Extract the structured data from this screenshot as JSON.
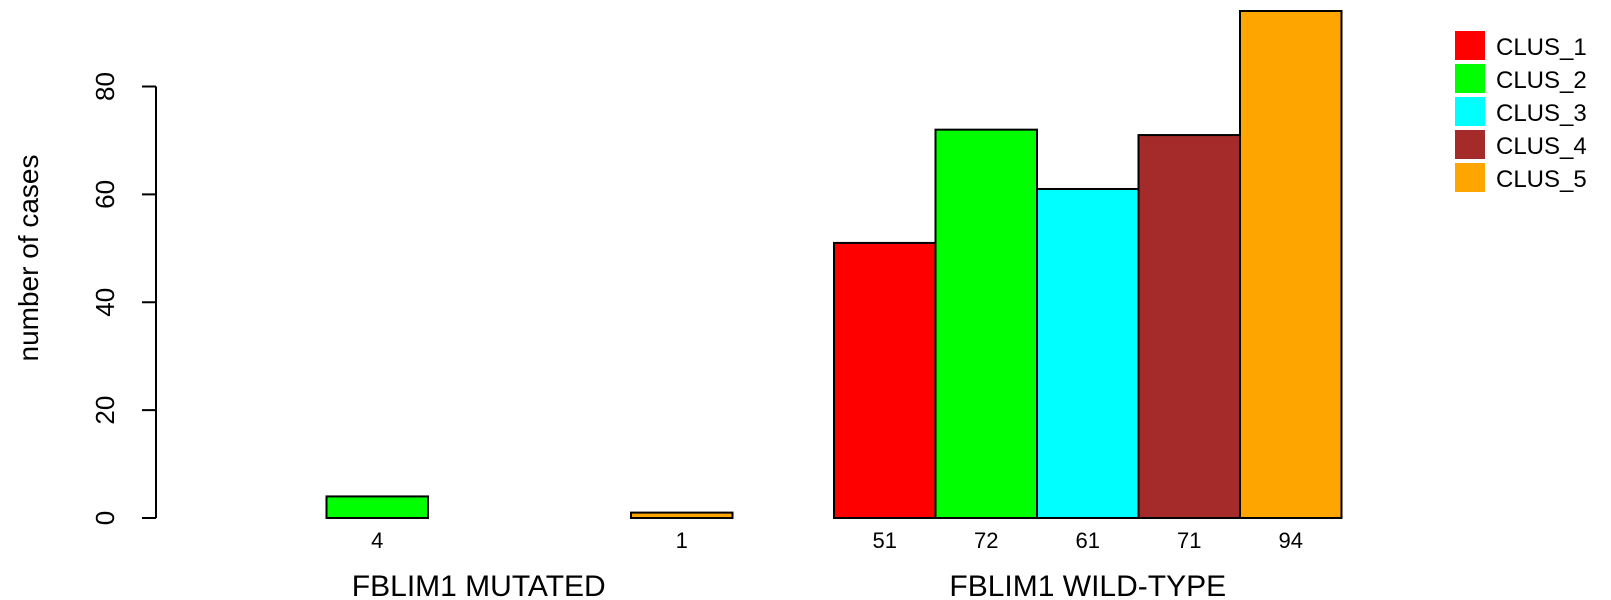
{
  "chart_data": {
    "type": "bar",
    "ylabel": "number of cases",
    "ylim": [
      0,
      94
    ],
    "yticks": [
      0,
      20,
      40,
      60,
      80
    ],
    "groups": [
      "FBLIM1 MUTATED",
      "FBLIM1 WILD-TYPE"
    ],
    "series": [
      {
        "name": "CLUS_1",
        "color": "#ff0000",
        "values": [
          0,
          51
        ]
      },
      {
        "name": "CLUS_2",
        "color": "#00ff00",
        "values": [
          4,
          72
        ]
      },
      {
        "name": "CLUS_3",
        "color": "#00ffff",
        "values": [
          0,
          61
        ]
      },
      {
        "name": "CLUS_4",
        "color": "#a52a2a",
        "values": [
          0,
          71
        ]
      },
      {
        "name": "CLUS_5",
        "color": "#ffa500",
        "values": [
          1,
          94
        ]
      }
    ],
    "bar_labels": [
      [
        "",
        "4",
        "",
        "",
        "1"
      ],
      [
        "51",
        "72",
        "61",
        "71",
        "94"
      ]
    ],
    "legend_position": "top-right"
  }
}
